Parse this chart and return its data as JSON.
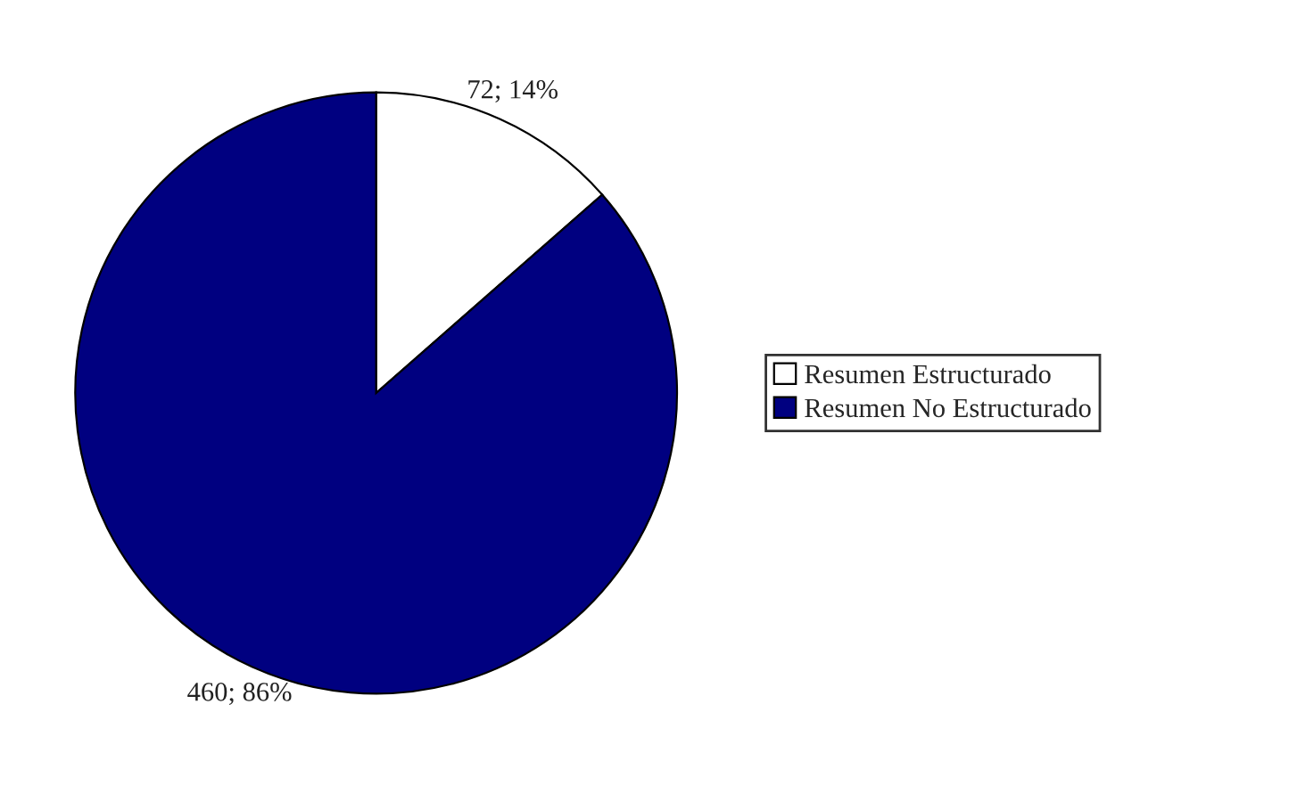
{
  "chart_data": {
    "type": "pie",
    "categories": [
      "Resumen Estructurado",
      "Resumen No Estructurado"
    ],
    "values": [
      72,
      460
    ],
    "colors": [
      "#ffffff",
      "#000080"
    ],
    "value_labels": [
      "72; 14%",
      "460; 86%"
    ],
    "legend": "right"
  }
}
